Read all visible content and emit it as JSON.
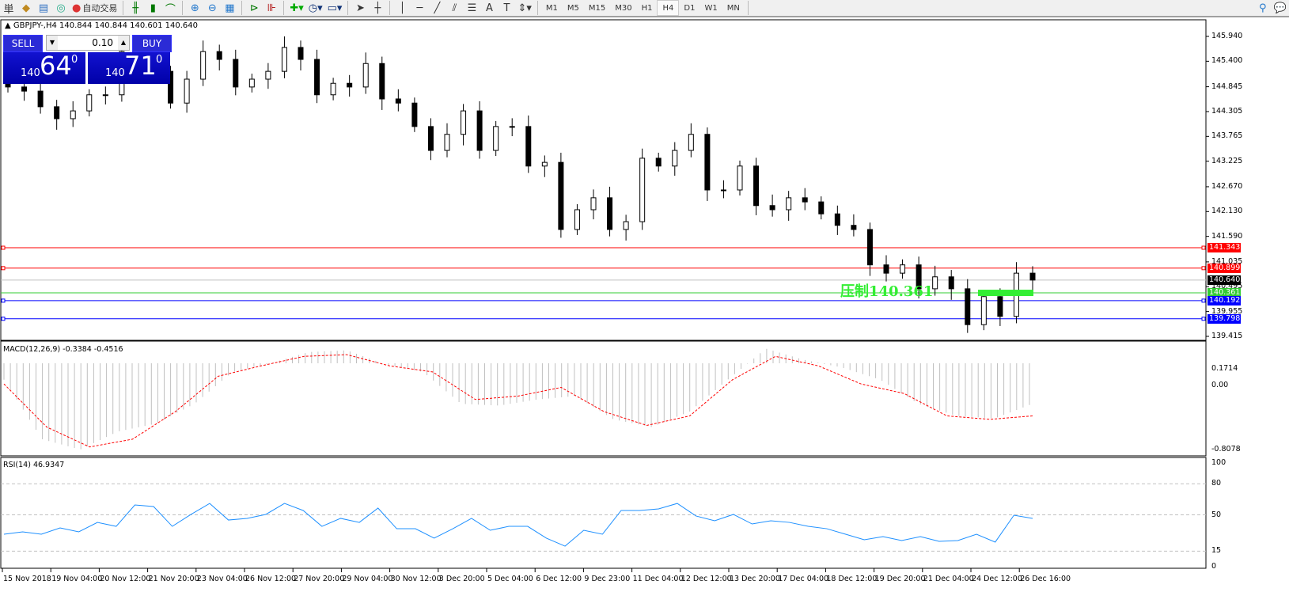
{
  "toolbar": {
    "chinese_left": "単",
    "auto_trade": "自动交易",
    "timeframes": [
      "M1",
      "M5",
      "M15",
      "M30",
      "H1",
      "H4",
      "D1",
      "W1",
      "MN"
    ],
    "active_timeframe": "H4",
    "icons": [
      "market-watch-icon",
      "navigator-icon",
      "signals-icon",
      "auto-trading-icon",
      "bar-chart-icon",
      "candlestick-icon",
      "line-chart-icon",
      "zoom-in-icon",
      "zoom-out-icon",
      "tile-windows-icon",
      "scroll-icon",
      "autoscroll-icon",
      "indicators-icon",
      "periods-icon",
      "templates-icon",
      "cursor-icon",
      "crosshair-icon",
      "vertical-line-icon",
      "horizontal-line-icon",
      "trendline-icon",
      "fibonacci-icon",
      "fibo-fan-icon",
      "text-icon",
      "text-label-icon",
      "arrows-icon"
    ]
  },
  "chart": {
    "header": "GBPJPY-,H4  140.844 140.844 140.601 140.640"
  },
  "trade_panel": {
    "sell_label": "SELL",
    "buy_label": "BUY",
    "volume": "0.10",
    "sell_prefix": "140",
    "sell_big": "64",
    "sell_sup": "0",
    "buy_prefix": "140",
    "buy_big": "71",
    "buy_sup": "0"
  },
  "annotation": {
    "text": "压制140.361",
    "color": "#33ee33"
  },
  "price_axis": {
    "ticks": [
      "145.940",
      "145.400",
      "144.845",
      "144.305",
      "143.765",
      "143.225",
      "142.670",
      "142.130",
      "141.590",
      "141.035",
      "140.495",
      "139.955",
      "139.415"
    ],
    "range": [
      139.415,
      145.94
    ]
  },
  "levels": [
    {
      "price": "141.343",
      "color": "#ff0000"
    },
    {
      "price": "140.899",
      "color": "#ff0000"
    },
    {
      "price": "140.640",
      "color": "#000000"
    },
    {
      "price": "140.361",
      "color": "#33cc33"
    },
    {
      "price": "140.192",
      "color": "#0000ff"
    },
    {
      "price": "139.798",
      "color": "#0000ff"
    }
  ],
  "closes": [
    144.84,
    144.75,
    144.41,
    144.15,
    144.32,
    144.67,
    144.67,
    145.61,
    145.44,
    145.18,
    144.49,
    145.01,
    145.61,
    145.44,
    144.84,
    145.01,
    145.18,
    145.7,
    145.44,
    144.67,
    144.92,
    144.84,
    145.35,
    144.58,
    144.49,
    143.98,
    143.46,
    143.81,
    144.32,
    143.46,
    143.98,
    143.98,
    143.12,
    143.2,
    141.74,
    142.17,
    142.43,
    141.74,
    141.91,
    143.29,
    143.12,
    143.46,
    143.81,
    142.6,
    142.6,
    143.12,
    142.26,
    142.17,
    142.43,
    142.34,
    142.08,
    141.83,
    141.74,
    140.97,
    140.79,
    140.97,
    140.45,
    140.71,
    140.45,
    139.67,
    140.28,
    139.85,
    140.79,
    140.64
  ],
  "macd": {
    "label": "MACD(12,26,9) -0.3384 -0.4516",
    "ticks": [
      "0.1714",
      "0.00",
      "-0.8078"
    ],
    "hist": [
      -0.19,
      -0.88,
      -1.0,
      -0.79,
      -0.7,
      -0.47,
      -0.1,
      0.0,
      0.13,
      0.15,
      -0.01,
      -0.1,
      -0.47,
      -0.49,
      -0.42,
      -0.38,
      -0.65,
      -0.74,
      -0.56,
      -0.19,
      0.17,
      0.04,
      -0.05,
      -0.19,
      -0.47,
      -0.61,
      -0.64,
      -0.47
    ],
    "signal": [
      -0.24,
      -0.74,
      -0.97,
      -0.88,
      -0.56,
      -0.15,
      -0.03,
      0.08,
      0.1,
      -0.03,
      -0.1,
      -0.42,
      -0.38,
      -0.28,
      -0.56,
      -0.72,
      -0.61,
      -0.19,
      0.08,
      -0.03,
      -0.24,
      -0.35,
      -0.61,
      -0.65,
      -0.61
    ]
  },
  "rsi": {
    "label": "RSI(14) 46.9347",
    "ticks": [
      "100",
      "80",
      "50",
      "15",
      "0"
    ],
    "values": [
      31.3,
      33.6,
      31.3,
      37.4,
      33.6,
      42.7,
      38.9,
      59.5,
      58,
      38.9,
      50.4,
      61,
      45,
      46.6,
      50.4,
      61,
      54.2,
      38.9,
      46.6,
      42.7,
      56.5,
      36.6,
      36.6,
      27.5,
      36.6,
      46.6,
      35.1,
      38.9,
      38.9,
      27.5,
      19.8,
      35.1,
      31.3,
      54.2,
      54.2,
      55.7,
      61,
      48.9,
      44.3,
      50.4,
      41.2,
      44.3,
      42.7,
      38.9,
      36.6,
      31.3,
      26,
      29,
      25.2,
      29,
      24.4,
      25.2,
      31.3,
      23.7,
      49.6,
      46.6
    ]
  },
  "time_axis": [
    "15 Nov 2018",
    "19 Nov 04:00",
    "20 Nov 12:00",
    "21 Nov 20:00",
    "23 Nov 04:00",
    "26 Nov 12:00",
    "27 Nov 20:00",
    "29 Nov 04:00",
    "30 Nov 12:00",
    "3 Dec 20:00",
    "5 Dec 04:00",
    "6 Dec 12:00",
    "9 Dec 23:00",
    "11 Dec 04:00",
    "12 Dec 12:00",
    "13 Dec 20:00",
    "17 Dec 04:00",
    "18 Dec 12:00",
    "19 Dec 20:00",
    "21 Dec 04:00",
    "24 Dec 12:00",
    "26 Dec 16:00"
  ],
  "colors": {
    "macd_signal": "#ff0000",
    "macd_hist": "#c0c0c0",
    "rsi_line": "#1e90ff"
  }
}
